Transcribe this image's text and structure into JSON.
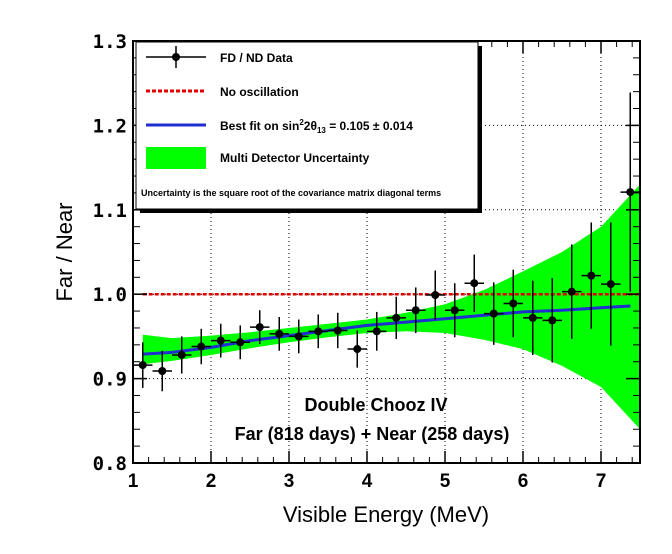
{
  "chart_data": {
    "type": "scatter",
    "xlabel": "Visible Energy (MeV)",
    "ylabel": "Far / Near",
    "xlim": [
      1,
      7.5
    ],
    "ylim": [
      0.8,
      1.3
    ],
    "x_ticks": [
      "1",
      "2",
      "3",
      "4",
      "5",
      "6",
      "7"
    ],
    "y_ticks": [
      "0.8",
      "0.9",
      "1.0",
      "1.1",
      "1.2",
      "1.3"
    ],
    "grid": true,
    "legend": {
      "placement": "top-left",
      "entries": {
        "data": "FD / ND Data",
        "no_osc": "No oscillation",
        "fit_prefix": "Best fit on sin",
        "fit_sup": "2",
        "fit_mid": "2θ",
        "fit_sub": "13",
        "fit_suffix": " = 0.105 ± 0.014",
        "band": "Multi Detector Uncertainty"
      },
      "note": "Uncertainty is the square root of the covariance matrix diagonal terms"
    },
    "annotations": {
      "line1": "Double Chooz IV",
      "line2": "Far (818 days) + Near (258 days)"
    },
    "colors": {
      "data": "#000000",
      "no_osc": "#e00000",
      "fit": "#1f2fd0",
      "band": "#00ff00"
    },
    "no_oscillation_value": 1.0,
    "data_series": [
      {
        "x": 1.125,
        "xerr": 0.125,
        "y": 0.916,
        "yerr": 0.027
      },
      {
        "x": 1.375,
        "xerr": 0.125,
        "y": 0.909,
        "yerr": 0.024
      },
      {
        "x": 1.625,
        "xerr": 0.125,
        "y": 0.928,
        "yerr": 0.022
      },
      {
        "x": 1.875,
        "xerr": 0.125,
        "y": 0.938,
        "yerr": 0.021
      },
      {
        "x": 2.125,
        "xerr": 0.125,
        "y": 0.945,
        "yerr": 0.02
      },
      {
        "x": 2.375,
        "xerr": 0.125,
        "y": 0.943,
        "yerr": 0.02
      },
      {
        "x": 2.625,
        "xerr": 0.125,
        "y": 0.961,
        "yerr": 0.02
      },
      {
        "x": 2.875,
        "xerr": 0.125,
        "y": 0.953,
        "yerr": 0.02
      },
      {
        "x": 3.125,
        "xerr": 0.125,
        "y": 0.95,
        "yerr": 0.02
      },
      {
        "x": 3.375,
        "xerr": 0.125,
        "y": 0.956,
        "yerr": 0.02
      },
      {
        "x": 3.625,
        "xerr": 0.125,
        "y": 0.957,
        "yerr": 0.021
      },
      {
        "x": 3.875,
        "xerr": 0.125,
        "y": 0.935,
        "yerr": 0.022
      },
      {
        "x": 4.125,
        "xerr": 0.125,
        "y": 0.956,
        "yerr": 0.023
      },
      {
        "x": 4.375,
        "xerr": 0.125,
        "y": 0.972,
        "yerr": 0.025
      },
      {
        "x": 4.625,
        "xerr": 0.125,
        "y": 0.981,
        "yerr": 0.027
      },
      {
        "x": 4.875,
        "xerr": 0.125,
        "y": 0.999,
        "yerr": 0.029
      },
      {
        "x": 5.125,
        "xerr": 0.125,
        "y": 0.981,
        "yerr": 0.032
      },
      {
        "x": 5.375,
        "xerr": 0.125,
        "y": 1.013,
        "yerr": 0.034
      },
      {
        "x": 5.625,
        "xerr": 0.125,
        "y": 0.977,
        "yerr": 0.037
      },
      {
        "x": 5.875,
        "xerr": 0.125,
        "y": 0.989,
        "yerr": 0.04
      },
      {
        "x": 6.125,
        "xerr": 0.125,
        "y": 0.972,
        "yerr": 0.044
      },
      {
        "x": 6.375,
        "xerr": 0.125,
        "y": 0.969,
        "yerr": 0.05
      },
      {
        "x": 6.625,
        "xerr": 0.125,
        "y": 1.003,
        "yerr": 0.056
      },
      {
        "x": 6.875,
        "xerr": 0.125,
        "y": 1.022,
        "yerr": 0.063
      },
      {
        "x": 7.125,
        "xerr": 0.125,
        "y": 1.012,
        "yerr": 0.073
      },
      {
        "x": 7.375,
        "xerr": 0.125,
        "y": 1.121,
        "yerr": 0.118
      }
    ],
    "best_fit": {
      "x": [
        1.125,
        1.5,
        2.0,
        2.5,
        3.0,
        3.5,
        4.0,
        4.5,
        5.0,
        5.5,
        6.0,
        6.5,
        7.0,
        7.375
      ],
      "y": [
        0.929,
        0.931,
        0.937,
        0.945,
        0.951,
        0.957,
        0.963,
        0.967,
        0.971,
        0.975,
        0.979,
        0.981,
        0.984,
        0.986
      ]
    },
    "uncertainty_band": {
      "x": [
        1.125,
        1.5,
        2.0,
        2.5,
        3.0,
        3.5,
        4.0,
        4.5,
        5.0,
        5.5,
        6.0,
        6.5,
        7.0,
        7.5
      ],
      "lower": [
        0.917,
        0.921,
        0.928,
        0.936,
        0.943,
        0.949,
        0.954,
        0.956,
        0.954,
        0.946,
        0.935,
        0.915,
        0.89,
        0.84
      ],
      "upper": [
        0.952,
        0.948,
        0.951,
        0.955,
        0.96,
        0.965,
        0.97,
        0.978,
        0.988,
        1.005,
        1.027,
        1.05,
        1.08,
        1.13
      ]
    }
  }
}
